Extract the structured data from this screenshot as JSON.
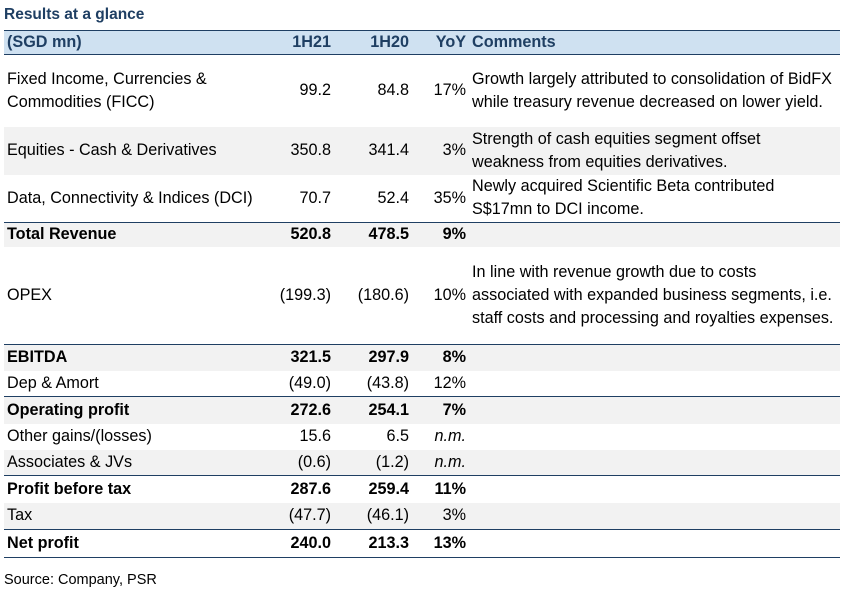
{
  "title": "Results at a glance",
  "headers": {
    "label": "(SGD mn)",
    "h21": "1H21",
    "h20": "1H20",
    "yoy": "YoY",
    "comments": "Comments"
  },
  "rows": [
    {
      "label": "Fixed Income, Currencies & Commodities (FICC)",
      "h21": "99.2",
      "h20": "84.8",
      "yoy": "17%",
      "comment": "Growth largely attributed to consolidation of BidFX while treasury revenue decreased on lower yield."
    },
    {
      "label": "Equities - Cash & Derivatives",
      "h21": "350.8",
      "h20": "341.4",
      "yoy": "3%",
      "comment": "Strength of cash equities segment offset weakness from equities derivatives."
    },
    {
      "label": "Data, Connectivity & Indices (DCI)",
      "h21": "70.7",
      "h20": "52.4",
      "yoy": "35%",
      "comment": "Newly acquired Scientific Beta contributed S$17mn to DCI income."
    },
    {
      "label": "Total Revenue",
      "h21": "520.8",
      "h20": "478.5",
      "yoy": "9%",
      "comment": ""
    },
    {
      "label": "OPEX",
      "h21": "(199.3)",
      "h20": "(180.6)",
      "yoy": "10%",
      "comment": "In line with revenue growth due to costs associated with expanded business segments, i.e. staff costs and processing and royalties expenses."
    },
    {
      "label": "EBITDA",
      "h21": "321.5",
      "h20": "297.9",
      "yoy": "8%",
      "comment": ""
    },
    {
      "label": "Dep & Amort",
      "h21": "(49.0)",
      "h20": "(43.8)",
      "yoy": "12%",
      "comment": ""
    },
    {
      "label": "Operating profit",
      "h21": "272.6",
      "h20": "254.1",
      "yoy": "7%",
      "comment": ""
    },
    {
      "label": "Other gains/(losses)",
      "h21": "15.6",
      "h20": "6.5",
      "yoy": "n.m.",
      "comment": ""
    },
    {
      "label": "Associates & JVs",
      "h21": "(0.6)",
      "h20": "(1.2)",
      "yoy": "n.m.",
      "comment": ""
    },
    {
      "label": "Profit before tax",
      "h21": "287.6",
      "h20": "259.4",
      "yoy": "11%",
      "comment": ""
    },
    {
      "label": "Tax",
      "h21": "(47.7)",
      "h20": "(46.1)",
      "yoy": "3%",
      "comment": ""
    },
    {
      "label": "Net profit",
      "h21": "240.0",
      "h20": "213.3",
      "yoy": "13%",
      "comment": ""
    }
  ],
  "source": "Source: Company, PSR"
}
